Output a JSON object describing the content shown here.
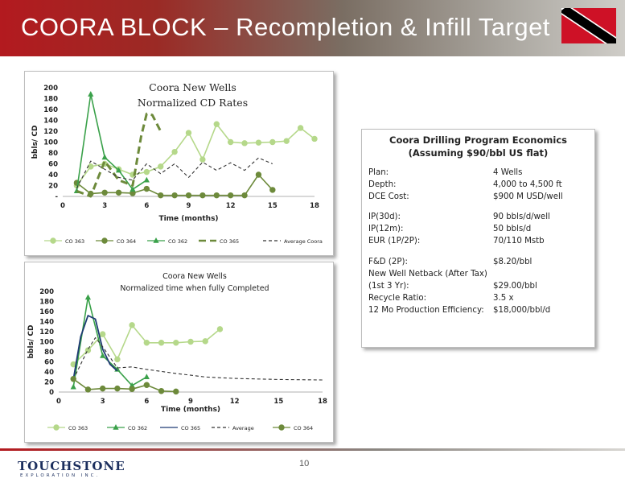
{
  "header": {
    "title": "COORA BLOCK – Recompletion & Infill Target"
  },
  "colors": {
    "co363": "#b5d88a",
    "co364": "#6d8a3b",
    "co362": "#3aa14a",
    "co365": "#6d8a3b",
    "average": "#333333",
    "co365_blue": "#1f3b73"
  },
  "chart_data": [
    {
      "type": "line",
      "title": "Coora New Wells Normalized CD Rates",
      "title_lines": [
        "Coora New Wells",
        "Normalized CD Rates"
      ],
      "xlabel": "Time (months)",
      "ylabel": "bbls/ CD",
      "xlim": [
        0,
        18
      ],
      "ylim": [
        0,
        200
      ],
      "xticks": [
        "0",
        "3",
        "6",
        "9",
        "12",
        "15",
        "18"
      ],
      "yticks": [
        "-",
        "20",
        "40",
        "60",
        "80",
        "100",
        "120",
        "140",
        "160",
        "180",
        "200"
      ],
      "legend_position": "bottom",
      "series": [
        {
          "name": "CO 363",
          "marker": "circle",
          "dash": "solid",
          "x": [
            1,
            2,
            3,
            4,
            5,
            6,
            7,
            8,
            9,
            10,
            11,
            12,
            13,
            14,
            15,
            16,
            17,
            18
          ],
          "y": [
            20,
            55,
            60,
            50,
            40,
            45,
            55,
            82,
            117,
            68,
            133,
            100,
            98,
            99,
            100,
            102,
            126,
            106
          ]
        },
        {
          "name": "CO 364",
          "marker": "circle",
          "dash": "solid",
          "x": [
            1,
            2,
            3,
            4,
            5,
            6,
            7,
            8,
            9,
            10,
            11,
            12,
            13,
            14,
            15
          ],
          "y": [
            25,
            5,
            7,
            7,
            6,
            14,
            2,
            2,
            2,
            2,
            2,
            2,
            2,
            40,
            12
          ]
        },
        {
          "name": "CO 362",
          "marker": "triangle",
          "dash": "solid",
          "x": [
            1,
            2,
            3,
            4,
            5,
            6
          ],
          "y": [
            10,
            188,
            72,
            48,
            13,
            30
          ]
        },
        {
          "name": "CO 365",
          "marker": "none",
          "dash": "longdash",
          "x": [
            1,
            2,
            3,
            4,
            5,
            5.6,
            6,
            6.4,
            7
          ],
          "y": [
            10,
            0,
            65,
            30,
            20,
            110,
            152,
            150,
            120
          ]
        },
        {
          "name": "Average Coora",
          "marker": "none",
          "dash": "shortdash",
          "x": [
            1,
            2,
            3,
            4,
            5,
            6,
            7,
            8,
            9,
            10,
            11,
            12,
            13,
            14,
            15
          ],
          "y": [
            15,
            65,
            50,
            35,
            30,
            60,
            42,
            60,
            35,
            63,
            48,
            62,
            48,
            71,
            60
          ]
        }
      ]
    },
    {
      "type": "line",
      "title": "Coora New Wells Normalized time when fully Completed",
      "title_lines": [
        "Coora New Wells",
        "Normalized time when fully Completed"
      ],
      "xlabel": "Time (months)",
      "ylabel": "bbls/ CD",
      "xlim": [
        0,
        18
      ],
      "ylim": [
        0,
        200
      ],
      "xticks": [
        "0",
        "3",
        "6",
        "9",
        "12",
        "15",
        "18"
      ],
      "yticks": [
        "0",
        "20",
        "40",
        "60",
        "80",
        "100",
        "120",
        "140",
        "160",
        "180",
        "200"
      ],
      "legend_position": "bottom",
      "series": [
        {
          "name": "CO 363",
          "marker": "circle",
          "dash": "solid",
          "x": [
            1,
            2,
            3,
            4,
            5,
            6,
            7,
            8,
            9,
            10,
            11
          ],
          "y": [
            55,
            83,
            115,
            65,
            133,
            98,
            98,
            98,
            100,
            101,
            125
          ]
        },
        {
          "name": "CO 362",
          "marker": "triangle",
          "dash": "solid",
          "x": [
            1,
            2,
            3,
            4,
            5,
            6
          ],
          "y": [
            10,
            188,
            72,
            45,
            13,
            30
          ]
        },
        {
          "name": "CO 365",
          "marker": "none",
          "dash": "solid",
          "x": [
            1,
            1.5,
            2,
            2.5,
            3,
            3.5,
            4
          ],
          "y": [
            25,
            110,
            152,
            145,
            85,
            55,
            42
          ]
        },
        {
          "name": "Average",
          "marker": "none",
          "dash": "shortdash",
          "x": [
            1,
            2,
            2.5,
            3,
            4,
            5,
            6,
            8,
            10,
            12,
            15,
            18
          ],
          "y": [
            25,
            85,
            108,
            90,
            48,
            50,
            45,
            37,
            30,
            27,
            25,
            24
          ]
        },
        {
          "name": "CO 364",
          "marker": "circle",
          "dash": "solid",
          "x": [
            1,
            2,
            3,
            4,
            5,
            6,
            7,
            8
          ],
          "y": [
            26,
            5,
            7,
            7,
            6,
            14,
            2,
            1
          ]
        }
      ]
    }
  ],
  "economics": {
    "title_line1": "Coora Drilling Program Economics",
    "title_line2": "(Assuming $90/bbl US flat)",
    "rows": [
      {
        "label": "Plan:",
        "value": "4 Wells"
      },
      {
        "label": "Depth:",
        "value": " 4,000 to 4,500 ft"
      },
      {
        "label": "DCE Cost:",
        "value": "$900 M USD/well"
      },
      {
        "label": "IP(30d):",
        "value": "90 bbls/d/well"
      },
      {
        "label": "IP(12m):",
        "value": "50 bbls/d"
      },
      {
        "label": "EUR (1P/2P):",
        "value": "70/110 Mstb"
      },
      {
        "label": "F&D (2P):",
        "value": "$8.20/bbl"
      },
      {
        "label": "New Well Netback (After Tax)",
        "value": ""
      },
      {
        "label": "(1st 3 Yr):",
        "value": "$29.00/bbl"
      },
      {
        "label": "Recycle Ratio:",
        "value": "3.5 x"
      },
      {
        "label": "12 Mo Production Efficiency:",
        "value": "$18,000/bbl/d"
      }
    ]
  },
  "footer": {
    "logo_name": "TOUCHSTONE",
    "logo_sub": "EXPLORATION INC.",
    "page_number": "10"
  }
}
